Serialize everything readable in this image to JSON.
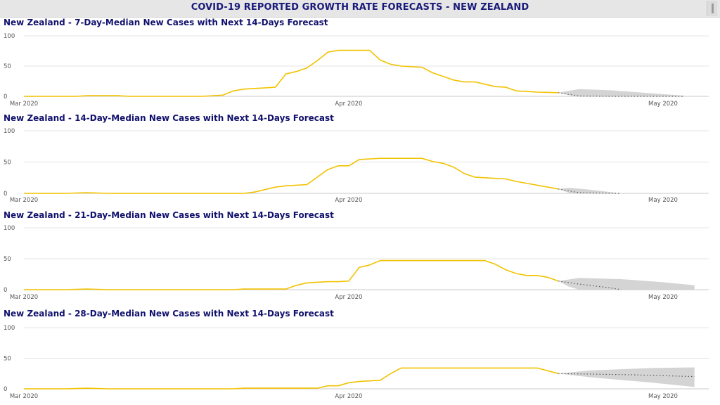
{
  "header": {
    "title": "COVID-19 REPORTED GROWTH RATE FORECASTS - NEW ZEALAND"
  },
  "chart_data": [
    {
      "type": "line",
      "title": "New Zealand - 7-Day-Median New Cases with Next 14-Days Forecast",
      "x_ticks": [
        "Mar 2020",
        "Apr 2020",
        "May 2020"
      ],
      "y_ticks": [
        0,
        50,
        100
      ],
      "ylim": [
        0,
        100
      ],
      "xlim": [
        "2020-03-01",
        "2020-05-04"
      ],
      "grid": true,
      "colors": {
        "actual": "#f2c200",
        "forecast_band": "#cccccc",
        "forecast_line": "#555555"
      },
      "series": [
        {
          "values": [
            {
              "x": "2020-03-01",
              "y": 0
            },
            {
              "x": "2020-03-06",
              "y": 0
            },
            {
              "x": "2020-03-07",
              "y": 1
            },
            {
              "x": "2020-03-10",
              "y": 1
            },
            {
              "x": "2020-03-11",
              "y": 0
            },
            {
              "x": "2020-03-18",
              "y": 0
            },
            {
              "x": "2020-03-20",
              "y": 2
            },
            {
              "x": "2020-03-21",
              "y": 9
            },
            {
              "x": "2020-03-22",
              "y": 12
            },
            {
              "x": "2020-03-25",
              "y": 15
            },
            {
              "x": "2020-03-26",
              "y": 37
            },
            {
              "x": "2020-03-27",
              "y": 41
            },
            {
              "x": "2020-03-28",
              "y": 47
            },
            {
              "x": "2020-03-29",
              "y": 59
            },
            {
              "x": "2020-03-30",
              "y": 73
            },
            {
              "x": "2020-03-31",
              "y": 76
            },
            {
              "x": "2020-04-03",
              "y": 76
            },
            {
              "x": "2020-04-04",
              "y": 60
            },
            {
              "x": "2020-04-05",
              "y": 53
            },
            {
              "x": "2020-04-06",
              "y": 50
            },
            {
              "x": "2020-04-08",
              "y": 48
            },
            {
              "x": "2020-04-09",
              "y": 39
            },
            {
              "x": "2020-04-10",
              "y": 33
            },
            {
              "x": "2020-04-11",
              "y": 27
            },
            {
              "x": "2020-04-12",
              "y": 24
            },
            {
              "x": "2020-04-13",
              "y": 24
            },
            {
              "x": "2020-04-14",
              "y": 20
            },
            {
              "x": "2020-04-15",
              "y": 16
            },
            {
              "x": "2020-04-16",
              "y": 15
            },
            {
              "x": "2020-04-17",
              "y": 9
            },
            {
              "x": "2020-04-18",
              "y": 8
            },
            {
              "x": "2020-04-19",
              "y": 7
            },
            {
              "x": "2020-04-21",
              "y": 6
            }
          ]
        },
        {
          "type": "forecast",
          "values": [
            {
              "x": "2020-04-21",
              "y": 6
            },
            {
              "x": "2020-04-23",
              "y": 0.5
            },
            {
              "x": "2020-04-26",
              "y": 0
            },
            {
              "x": "2020-05-03",
              "y": 0
            }
          ],
          "upper": [
            {
              "x": "2020-04-21",
              "y": 6
            },
            {
              "x": "2020-04-23",
              "y": 12
            },
            {
              "x": "2020-04-26",
              "y": 10
            },
            {
              "x": "2020-04-30",
              "y": 5
            },
            {
              "x": "2020-05-03",
              "y": 1
            }
          ],
          "lower": [
            {
              "x": "2020-04-21",
              "y": 6
            },
            {
              "x": "2020-04-22",
              "y": 2
            },
            {
              "x": "2020-04-23",
              "y": 0
            },
            {
              "x": "2020-05-03",
              "y": 0
            }
          ]
        }
      ]
    },
    {
      "type": "line",
      "title": "New Zealand - 14-Day-Median New Cases with Next 14-Days Forecast",
      "x_ticks": [
        "Mar 2020",
        "Apr 2020",
        "May 2020"
      ],
      "y_ticks": [
        0,
        50,
        100
      ],
      "ylim": [
        0,
        100
      ],
      "xlim": [
        "2020-03-01",
        "2020-05-04"
      ],
      "grid": true,
      "colors": {
        "actual": "#f2c200",
        "forecast_band": "#cccccc",
        "forecast_line": "#555555"
      },
      "series": [
        {
          "values": [
            {
              "x": "2020-03-01",
              "y": 0
            },
            {
              "x": "2020-03-05",
              "y": 0
            },
            {
              "x": "2020-03-07",
              "y": 1
            },
            {
              "x": "2020-03-09",
              "y": 0
            },
            {
              "x": "2020-03-22",
              "y": 0
            },
            {
              "x": "2020-03-23",
              "y": 2
            },
            {
              "x": "2020-03-25",
              "y": 10
            },
            {
              "x": "2020-03-26",
              "y": 12
            },
            {
              "x": "2020-03-28",
              "y": 14
            },
            {
              "x": "2020-03-29",
              "y": 26
            },
            {
              "x": "2020-03-30",
              "y": 38
            },
            {
              "x": "2020-03-31",
              "y": 44
            },
            {
              "x": "2020-04-01",
              "y": 44
            },
            {
              "x": "2020-04-02",
              "y": 54
            },
            {
              "x": "2020-04-03",
              "y": 55
            },
            {
              "x": "2020-04-04",
              "y": 56
            },
            {
              "x": "2020-04-08",
              "y": 56
            },
            {
              "x": "2020-04-09",
              "y": 51
            },
            {
              "x": "2020-04-10",
              "y": 48
            },
            {
              "x": "2020-04-11",
              "y": 42
            },
            {
              "x": "2020-04-12",
              "y": 32
            },
            {
              "x": "2020-04-13",
              "y": 26
            },
            {
              "x": "2020-04-14",
              "y": 25
            },
            {
              "x": "2020-04-16",
              "y": 23
            },
            {
              "x": "2020-04-17",
              "y": 19
            },
            {
              "x": "2020-04-21",
              "y": 7
            }
          ]
        },
        {
          "type": "forecast",
          "values": [
            {
              "x": "2020-04-21",
              "y": 7
            },
            {
              "x": "2020-04-23",
              "y": 1
            },
            {
              "x": "2020-04-26",
              "y": 0
            },
            {
              "x": "2020-04-27",
              "y": 0
            }
          ],
          "upper": [
            {
              "x": "2020-04-21",
              "y": 7
            },
            {
              "x": "2020-04-22",
              "y": 9
            },
            {
              "x": "2020-04-24",
              "y": 6
            },
            {
              "x": "2020-04-27",
              "y": 0
            }
          ],
          "lower": [
            {
              "x": "2020-04-21",
              "y": 7
            },
            {
              "x": "2020-04-22",
              "y": 1
            },
            {
              "x": "2020-04-23",
              "y": 0
            },
            {
              "x": "2020-04-27",
              "y": 0
            }
          ]
        }
      ]
    },
    {
      "type": "line",
      "title": "New Zealand - 21-Day-Median New Cases with Next 14-Days Forecast",
      "x_ticks": [
        "Mar 2020",
        "Apr 2020",
        "May 2020"
      ],
      "y_ticks": [
        0,
        50,
        100
      ],
      "ylim": [
        0,
        100
      ],
      "xlim": [
        "2020-03-01",
        "2020-05-04"
      ],
      "grid": true,
      "colors": {
        "actual": "#f2c200",
        "forecast_band": "#cccccc",
        "forecast_line": "#555555"
      },
      "series": [
        {
          "values": [
            {
              "x": "2020-03-01",
              "y": 0
            },
            {
              "x": "2020-03-05",
              "y": 0
            },
            {
              "x": "2020-03-07",
              "y": 1
            },
            {
              "x": "2020-03-09",
              "y": 0
            },
            {
              "x": "2020-03-21",
              "y": 0
            },
            {
              "x": "2020-03-22",
              "y": 1
            },
            {
              "x": "2020-03-26",
              "y": 1
            },
            {
              "x": "2020-03-27",
              "y": 7
            },
            {
              "x": "2020-03-28",
              "y": 11
            },
            {
              "x": "2020-03-30",
              "y": 13
            },
            {
              "x": "2020-03-31",
              "y": 13
            },
            {
              "x": "2020-04-01",
              "y": 14
            },
            {
              "x": "2020-04-02",
              "y": 36
            },
            {
              "x": "2020-04-03",
              "y": 40
            },
            {
              "x": "2020-04-04",
              "y": 47
            },
            {
              "x": "2020-04-14",
              "y": 47
            },
            {
              "x": "2020-04-15",
              "y": 41
            },
            {
              "x": "2020-04-16",
              "y": 32
            },
            {
              "x": "2020-04-17",
              "y": 26
            },
            {
              "x": "2020-04-18",
              "y": 23
            },
            {
              "x": "2020-04-19",
              "y": 23
            },
            {
              "x": "2020-04-20",
              "y": 20
            },
            {
              "x": "2020-04-21",
              "y": 14
            }
          ]
        },
        {
          "type": "forecast",
          "values": [
            {
              "x": "2020-04-21",
              "y": 14
            },
            {
              "x": "2020-04-23",
              "y": 9
            },
            {
              "x": "2020-04-26",
              "y": 3
            },
            {
              "x": "2020-04-27",
              "y": 0
            }
          ],
          "upper": [
            {
              "x": "2020-04-21",
              "y": 14
            },
            {
              "x": "2020-04-23",
              "y": 19
            },
            {
              "x": "2020-04-27",
              "y": 17
            },
            {
              "x": "2020-05-01",
              "y": 12
            },
            {
              "x": "2020-05-04",
              "y": 7
            }
          ],
          "lower": [
            {
              "x": "2020-04-21",
              "y": 14
            },
            {
              "x": "2020-04-22",
              "y": 5
            },
            {
              "x": "2020-04-23",
              "y": 0
            },
            {
              "x": "2020-05-04",
              "y": 0
            }
          ]
        }
      ]
    },
    {
      "type": "line",
      "title": "New Zealand - 28-Day-Median New Cases with Next 14-Days Forecast",
      "x_ticks": [
        "Mar 2020",
        "Apr 2020",
        "May 2020"
      ],
      "y_ticks": [
        0,
        50,
        100
      ],
      "ylim": [
        0,
        100
      ],
      "xlim": [
        "2020-03-01",
        "2020-05-04"
      ],
      "grid": true,
      "colors": {
        "actual": "#f2c200",
        "forecast_band": "#cccccc",
        "forecast_line": "#555555"
      },
      "series": [
        {
          "values": [
            {
              "x": "2020-03-01",
              "y": 0
            },
            {
              "x": "2020-03-05",
              "y": 0
            },
            {
              "x": "2020-03-07",
              "y": 1
            },
            {
              "x": "2020-03-09",
              "y": 0
            },
            {
              "x": "2020-03-21",
              "y": 0
            },
            {
              "x": "2020-03-22",
              "y": 1
            },
            {
              "x": "2020-03-29",
              "y": 1
            },
            {
              "x": "2020-03-30",
              "y": 5
            },
            {
              "x": "2020-03-31",
              "y": 5
            },
            {
              "x": "2020-04-01",
              "y": 10
            },
            {
              "x": "2020-04-02",
              "y": 12
            },
            {
              "x": "2020-04-04",
              "y": 14
            },
            {
              "x": "2020-04-05",
              "y": 25
            },
            {
              "x": "2020-04-06",
              "y": 34
            },
            {
              "x": "2020-04-19",
              "y": 34
            },
            {
              "x": "2020-04-21",
              "y": 25
            }
          ]
        },
        {
          "type": "forecast",
          "values": [
            {
              "x": "2020-04-21",
              "y": 25
            },
            {
              "x": "2020-04-28",
              "y": 23
            },
            {
              "x": "2020-05-04",
              "y": 20
            }
          ],
          "upper": [
            {
              "x": "2020-04-21",
              "y": 25
            },
            {
              "x": "2020-04-24",
              "y": 30
            },
            {
              "x": "2020-04-30",
              "y": 34
            },
            {
              "x": "2020-05-04",
              "y": 35
            }
          ],
          "lower": [
            {
              "x": "2020-04-21",
              "y": 25
            },
            {
              "x": "2020-04-24",
              "y": 19
            },
            {
              "x": "2020-04-30",
              "y": 10
            },
            {
              "x": "2020-05-04",
              "y": 3
            }
          ]
        }
      ]
    }
  ]
}
